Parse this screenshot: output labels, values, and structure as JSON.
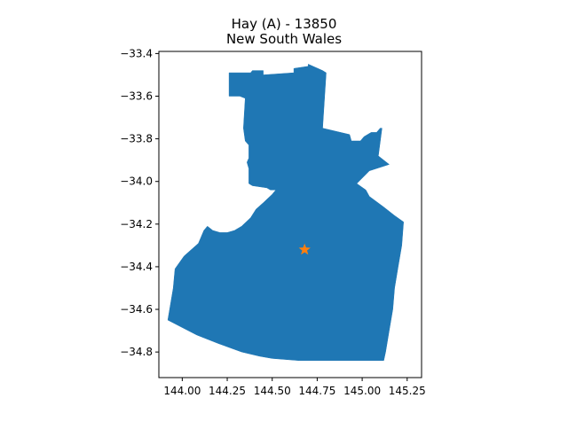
{
  "title": {
    "line1": "Hay (A) - 13850",
    "line2": "New South Wales"
  },
  "colors": {
    "region_fill": "#1f77b4",
    "marker": "#ff7f0e",
    "axes": "#000000",
    "background": "#ffffff"
  },
  "chart_data": {
    "type": "map",
    "title": "Hay (A) - 13850\nNew South Wales",
    "xlabel": "",
    "ylabel": "",
    "xlim": [
      143.87,
      145.33
    ],
    "ylim": [
      -34.92,
      -33.39
    ],
    "grid": false,
    "x_ticks": [
      {
        "value": 144.0,
        "label": "144.00"
      },
      {
        "value": 144.25,
        "label": "144.25"
      },
      {
        "value": 144.5,
        "label": "144.50"
      },
      {
        "value": 144.75,
        "label": "144.75"
      },
      {
        "value": 145.0,
        "label": "145.00"
      },
      {
        "value": 145.25,
        "label": "145.25"
      }
    ],
    "y_ticks": [
      {
        "value": -33.4,
        "label": "−33.4"
      },
      {
        "value": -33.6,
        "label": "−33.6"
      },
      {
        "value": -33.8,
        "label": "−33.8"
      },
      {
        "value": -34.0,
        "label": "−34.0"
      },
      {
        "value": -34.2,
        "label": "−34.2"
      },
      {
        "value": -34.4,
        "label": "−34.4"
      },
      {
        "value": -34.6,
        "label": "−34.6"
      },
      {
        "value": -34.8,
        "label": "−34.8"
      }
    ],
    "region_polygon": [
      [
        144.39,
        -33.48
      ],
      [
        144.45,
        -33.48
      ],
      [
        144.45,
        -33.5
      ],
      [
        144.62,
        -33.49
      ],
      [
        144.62,
        -33.47
      ],
      [
        144.7,
        -33.46
      ],
      [
        144.7,
        -33.45
      ],
      [
        144.78,
        -33.48
      ],
      [
        144.8,
        -33.49
      ],
      [
        144.78,
        -33.75
      ],
      [
        144.93,
        -33.78
      ],
      [
        144.94,
        -33.81
      ],
      [
        144.99,
        -33.81
      ],
      [
        145.01,
        -33.79
      ],
      [
        145.05,
        -33.77
      ],
      [
        145.08,
        -33.77
      ],
      [
        145.1,
        -33.75
      ],
      [
        145.11,
        -33.75
      ],
      [
        145.09,
        -33.88
      ],
      [
        145.15,
        -33.92
      ],
      [
        145.04,
        -33.95
      ],
      [
        144.97,
        -34.01
      ],
      [
        145.02,
        -34.04
      ],
      [
        145.04,
        -34.07
      ],
      [
        145.12,
        -34.12
      ],
      [
        145.18,
        -34.16
      ],
      [
        145.23,
        -34.19
      ],
      [
        145.22,
        -34.3
      ],
      [
        145.2,
        -34.4
      ],
      [
        145.18,
        -34.5
      ],
      [
        145.17,
        -34.6
      ],
      [
        145.15,
        -34.7
      ],
      [
        145.13,
        -34.8
      ],
      [
        145.12,
        -34.84
      ],
      [
        144.65,
        -34.84
      ],
      [
        144.5,
        -34.83
      ],
      [
        144.43,
        -34.82
      ],
      [
        144.33,
        -34.8
      ],
      [
        144.2,
        -34.76
      ],
      [
        144.08,
        -34.72
      ],
      [
        143.92,
        -34.65
      ],
      [
        143.95,
        -34.5
      ],
      [
        143.96,
        -34.41
      ],
      [
        144.01,
        -34.35
      ],
      [
        144.09,
        -34.29
      ],
      [
        144.12,
        -34.23
      ],
      [
        144.14,
        -34.21
      ],
      [
        144.17,
        -34.23
      ],
      [
        144.21,
        -34.24
      ],
      [
        144.25,
        -34.24
      ],
      [
        144.29,
        -34.23
      ],
      [
        144.33,
        -34.21
      ],
      [
        144.38,
        -34.17
      ],
      [
        144.41,
        -34.13
      ],
      [
        144.45,
        -34.1
      ],
      [
        144.5,
        -34.06
      ],
      [
        144.52,
        -34.04
      ],
      [
        144.49,
        -34.04
      ],
      [
        144.47,
        -34.03
      ],
      [
        144.39,
        -34.02
      ],
      [
        144.37,
        -34.01
      ],
      [
        144.37,
        -33.94
      ],
      [
        144.36,
        -33.91
      ],
      [
        144.37,
        -33.89
      ],
      [
        144.37,
        -33.83
      ],
      [
        144.35,
        -33.81
      ],
      [
        144.34,
        -33.75
      ],
      [
        144.35,
        -33.61
      ],
      [
        144.32,
        -33.6
      ],
      [
        144.26,
        -33.6
      ],
      [
        144.26,
        -33.49
      ],
      [
        144.38,
        -33.49
      ]
    ],
    "marker": {
      "x": 144.68,
      "y": -34.32,
      "symbol": "star"
    }
  }
}
